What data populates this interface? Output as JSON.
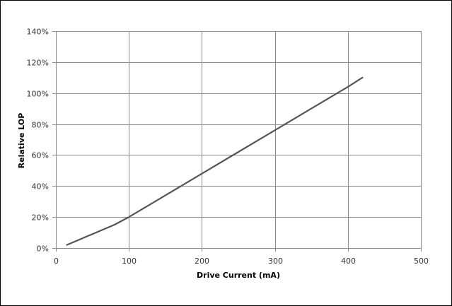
{
  "chart_data": {
    "type": "line",
    "title": "",
    "xlabel": "Drive Current (mA)",
    "ylabel": "Relative LOP",
    "xlim": [
      0,
      500
    ],
    "ylim": [
      0,
      140
    ],
    "x_ticks": [
      0,
      100,
      200,
      300,
      400,
      500
    ],
    "y_ticks": [
      0,
      20,
      40,
      60,
      80,
      100,
      120,
      140
    ],
    "x_tick_labels": [
      "0",
      "100",
      "200",
      "300",
      "400",
      "500"
    ],
    "y_tick_labels": [
      "0%",
      "20%",
      "40%",
      "60%",
      "80%",
      "100%",
      "120%",
      "140%"
    ],
    "grid": true,
    "legend": "none",
    "series": [
      {
        "x": [
          15,
          40,
          60,
          80,
          100,
          125,
          150,
          175,
          200,
          250,
          300,
          350,
          400,
          420
        ],
        "y": [
          2,
          7,
          11,
          15,
          20,
          27,
          34,
          41,
          48,
          62,
          76,
          90,
          104,
          110
        ]
      }
    ],
    "colors": {
      "line": "#555555",
      "grid": "#8c8c8c",
      "text": "#333333"
    }
  }
}
